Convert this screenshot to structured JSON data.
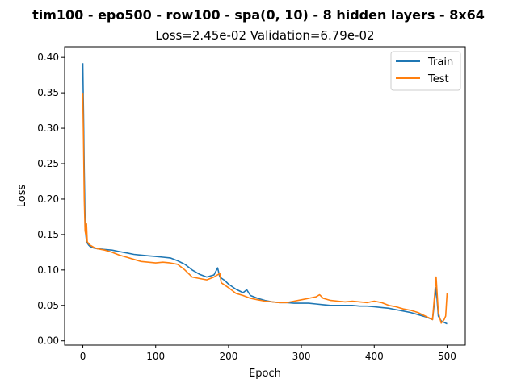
{
  "chart_data": {
    "type": "line",
    "title": "tim100 - epo500 - row100 - spa(0, 10) - 8 hidden layers - 8x64",
    "subtitle": "Loss=2.45e-02 Validation=6.79e-02",
    "xlabel": "Epoch",
    "ylabel": "Loss",
    "xlim": [
      -25,
      525
    ],
    "ylim": [
      -0.006,
      0.415
    ],
    "xticks": [
      0,
      100,
      200,
      300,
      400,
      500
    ],
    "xtick_labels": [
      "0",
      "100",
      "200",
      "300",
      "400",
      "500"
    ],
    "yticks": [
      0.0,
      0.05,
      0.1,
      0.15,
      0.2,
      0.25,
      0.3,
      0.35,
      0.4
    ],
    "ytick_labels": [
      "0.00",
      "0.05",
      "0.10",
      "0.15",
      "0.20",
      "0.25",
      "0.30",
      "0.35",
      "0.40"
    ],
    "grid": false,
    "legend_position": "top-right",
    "series": [
      {
        "name": "Train",
        "color": "#1f77b4",
        "points": [
          [
            0,
            0.392
          ],
          [
            1,
            0.32
          ],
          [
            2,
            0.24
          ],
          [
            3,
            0.17
          ],
          [
            4,
            0.15
          ],
          [
            5,
            0.14
          ],
          [
            6,
            0.138
          ],
          [
            8,
            0.135
          ],
          [
            10,
            0.133
          ],
          [
            15,
            0.131
          ],
          [
            20,
            0.13
          ],
          [
            30,
            0.129
          ],
          [
            40,
            0.128
          ],
          [
            50,
            0.126
          ],
          [
            60,
            0.124
          ],
          [
            70,
            0.122
          ],
          [
            80,
            0.121
          ],
          [
            90,
            0.12
          ],
          [
            100,
            0.119
          ],
          [
            110,
            0.118
          ],
          [
            120,
            0.117
          ],
          [
            130,
            0.113
          ],
          [
            140,
            0.108
          ],
          [
            150,
            0.1
          ],
          [
            160,
            0.094
          ],
          [
            170,
            0.09
          ],
          [
            180,
            0.093
          ],
          [
            185,
            0.103
          ],
          [
            188,
            0.09
          ],
          [
            195,
            0.085
          ],
          [
            200,
            0.08
          ],
          [
            210,
            0.073
          ],
          [
            220,
            0.068
          ],
          [
            225,
            0.072
          ],
          [
            230,
            0.064
          ],
          [
            240,
            0.06
          ],
          [
            250,
            0.057
          ],
          [
            260,
            0.055
          ],
          [
            270,
            0.054
          ],
          [
            280,
            0.054
          ],
          [
            290,
            0.053
          ],
          [
            300,
            0.053
          ],
          [
            310,
            0.053
          ],
          [
            320,
            0.052
          ],
          [
            330,
            0.051
          ],
          [
            340,
            0.05
          ],
          [
            350,
            0.05
          ],
          [
            360,
            0.05
          ],
          [
            370,
            0.05
          ],
          [
            380,
            0.049
          ],
          [
            390,
            0.049
          ],
          [
            400,
            0.048
          ],
          [
            410,
            0.047
          ],
          [
            420,
            0.046
          ],
          [
            430,
            0.044
          ],
          [
            440,
            0.042
          ],
          [
            450,
            0.04
          ],
          [
            460,
            0.037
          ],
          [
            470,
            0.034
          ],
          [
            480,
            0.03
          ],
          [
            485,
            0.075
          ],
          [
            488,
            0.035
          ],
          [
            492,
            0.028
          ],
          [
            496,
            0.026
          ],
          [
            500,
            0.024
          ]
        ]
      },
      {
        "name": "Test",
        "color": "#ff7f0e",
        "points": [
          [
            0,
            0.35
          ],
          [
            1,
            0.28
          ],
          [
            2,
            0.2
          ],
          [
            3,
            0.155
          ],
          [
            4,
            0.15
          ],
          [
            5,
            0.165
          ],
          [
            6,
            0.14
          ],
          [
            8,
            0.137
          ],
          [
            10,
            0.135
          ],
          [
            15,
            0.132
          ],
          [
            20,
            0.13
          ],
          [
            30,
            0.128
          ],
          [
            40,
            0.125
          ],
          [
            50,
            0.121
          ],
          [
            60,
            0.118
          ],
          [
            70,
            0.115
          ],
          [
            80,
            0.112
          ],
          [
            90,
            0.111
          ],
          [
            100,
            0.11
          ],
          [
            110,
            0.111
          ],
          [
            120,
            0.11
          ],
          [
            130,
            0.108
          ],
          [
            140,
            0.1
          ],
          [
            150,
            0.09
          ],
          [
            160,
            0.088
          ],
          [
            170,
            0.086
          ],
          [
            180,
            0.09
          ],
          [
            188,
            0.095
          ],
          [
            190,
            0.082
          ],
          [
            200,
            0.075
          ],
          [
            210,
            0.067
          ],
          [
            220,
            0.064
          ],
          [
            230,
            0.06
          ],
          [
            240,
            0.058
          ],
          [
            250,
            0.056
          ],
          [
            260,
            0.055
          ],
          [
            270,
            0.054
          ],
          [
            280,
            0.054
          ],
          [
            290,
            0.056
          ],
          [
            300,
            0.058
          ],
          [
            310,
            0.06
          ],
          [
            320,
            0.062
          ],
          [
            325,
            0.065
          ],
          [
            330,
            0.06
          ],
          [
            340,
            0.057
          ],
          [
            350,
            0.056
          ],
          [
            360,
            0.055
          ],
          [
            370,
            0.056
          ],
          [
            380,
            0.055
          ],
          [
            390,
            0.054
          ],
          [
            400,
            0.056
          ],
          [
            410,
            0.054
          ],
          [
            420,
            0.05
          ],
          [
            430,
            0.048
          ],
          [
            440,
            0.045
          ],
          [
            450,
            0.043
          ],
          [
            460,
            0.04
          ],
          [
            470,
            0.035
          ],
          [
            480,
            0.03
          ],
          [
            485,
            0.09
          ],
          [
            488,
            0.04
          ],
          [
            492,
            0.025
          ],
          [
            496,
            0.03
          ],
          [
            498,
            0.035
          ],
          [
            500,
            0.068
          ]
        ]
      }
    ]
  }
}
